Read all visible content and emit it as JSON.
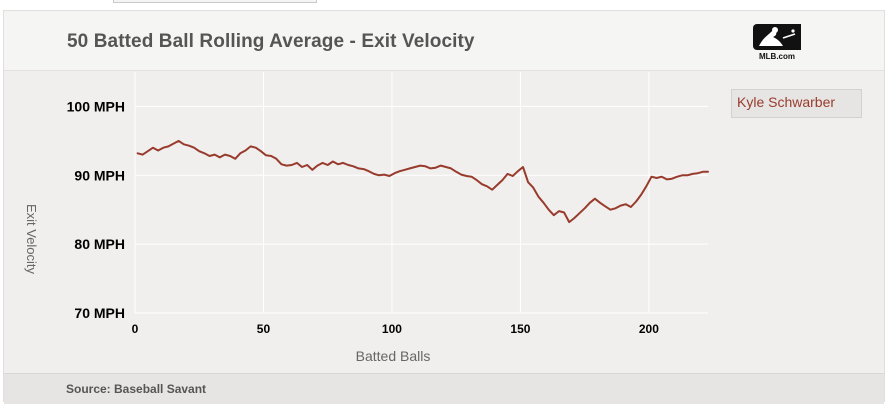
{
  "header": {
    "title": "50 Batted Ball Rolling Average - Exit Velocity",
    "logo_text": "MLB.com"
  },
  "footer": {
    "source": "Source: Baseball Savant"
  },
  "colors": {
    "line": "#983b2c",
    "background": "#f0efee",
    "grid": "#ffffff"
  },
  "chart_data": {
    "type": "line",
    "title": "50 Batted Ball Rolling Average - Exit Velocity",
    "xlabel": "Batted Balls",
    "ylabel": "Exit Velocity",
    "xlim": [
      0,
      223
    ],
    "ylim": [
      70,
      105
    ],
    "x_ticks": [
      0,
      50,
      100,
      150,
      200
    ],
    "y_ticks": [
      {
        "value": 70,
        "label": "70 MPH"
      },
      {
        "value": 80,
        "label": "80 MPH"
      },
      {
        "value": 90,
        "label": "90 MPH"
      },
      {
        "value": 100,
        "label": "100 MPH"
      }
    ],
    "grid": true,
    "legend_position": "top-right",
    "series": [
      {
        "name": "Kyle Schwarber",
        "color": "#983b2c",
        "x": [
          1,
          3,
          5,
          7,
          9,
          11,
          13,
          15,
          17,
          19,
          21,
          23,
          25,
          27,
          29,
          31,
          33,
          35,
          37,
          39,
          41,
          43,
          45,
          47,
          49,
          51,
          53,
          55,
          57,
          59,
          61,
          63,
          65,
          67,
          69,
          71,
          73,
          75,
          77,
          79,
          81,
          83,
          85,
          87,
          89,
          91,
          93,
          95,
          97,
          99,
          101,
          103,
          105,
          107,
          109,
          111,
          113,
          115,
          117,
          119,
          121,
          123,
          125,
          127,
          129,
          131,
          133,
          135,
          137,
          139,
          141,
          143,
          145,
          147,
          149,
          151,
          153,
          155,
          157,
          159,
          161,
          163,
          165,
          167,
          169,
          171,
          173,
          175,
          177,
          179,
          181,
          183,
          185,
          187,
          189,
          191,
          193,
          195,
          197,
          199,
          201,
          203,
          205,
          207,
          209,
          211,
          213,
          215,
          217,
          219,
          221,
          223
        ],
        "values": [
          93.2,
          93.0,
          93.5,
          94.0,
          93.6,
          94.0,
          94.2,
          94.6,
          95.0,
          94.5,
          94.3,
          94.0,
          93.5,
          93.2,
          92.8,
          93.0,
          92.6,
          93.0,
          92.8,
          92.4,
          93.2,
          93.6,
          94.2,
          94.0,
          93.5,
          92.9,
          92.8,
          92.4,
          91.6,
          91.4,
          91.5,
          91.8,
          91.2,
          91.5,
          90.8,
          91.4,
          91.8,
          91.5,
          92.0,
          91.6,
          91.8,
          91.5,
          91.3,
          91.0,
          90.9,
          90.6,
          90.2,
          90.0,
          90.1,
          89.9,
          90.3,
          90.6,
          90.8,
          91.0,
          91.2,
          91.4,
          91.3,
          91.0,
          91.1,
          91.4,
          91.2,
          91.0,
          90.5,
          90.1,
          89.9,
          89.8,
          89.3,
          88.7,
          88.4,
          87.9,
          88.6,
          89.3,
          90.2,
          89.9,
          90.6,
          91.2,
          89.0,
          88.2,
          86.9,
          86.0,
          85.0,
          84.2,
          84.8,
          84.6,
          83.2,
          83.8,
          84.5,
          85.2,
          86.0,
          86.6,
          86.0,
          85.5,
          85.0,
          85.2,
          85.6,
          85.8,
          85.4,
          86.2,
          87.2,
          88.4,
          89.8,
          89.6,
          89.8,
          89.4,
          89.5,
          89.8,
          90.0,
          90.0,
          90.2,
          90.3,
          90.5,
          90.5
        ]
      }
    ]
  }
}
